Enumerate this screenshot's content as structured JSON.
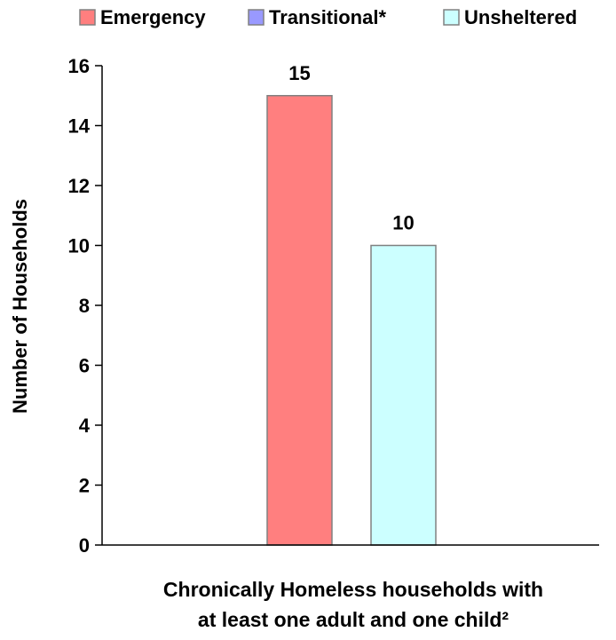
{
  "chart_data": {
    "type": "bar",
    "categories": [
      "Chronically Homeless households with at least one adult and one child²"
    ],
    "category_label_lines": [
      "Chronically Homeless households with",
      "at least one adult and one child²"
    ],
    "series": [
      {
        "name": "Emergency",
        "color": "#ff7f7f",
        "values": [
          15
        ]
      },
      {
        "name": "Transitional*",
        "color": "#9999ff",
        "values": [
          0
        ]
      },
      {
        "name": "Unsheltered",
        "color": "#ccffff",
        "values": [
          10
        ]
      }
    ],
    "data_labels": [
      "15",
      "",
      "10"
    ],
    "ylabel": "Number of Households",
    "xlabel": "",
    "title": "",
    "ylim": [
      0,
      16
    ],
    "yticks": [
      0,
      2,
      4,
      6,
      8,
      10,
      12,
      14,
      16
    ],
    "grid": false,
    "legend_position": "top"
  }
}
